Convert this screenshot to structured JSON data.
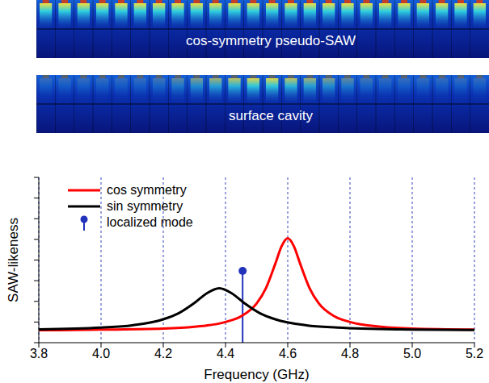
{
  "images": [
    {
      "label": "cos-symmetry pseudo-SAW"
    },
    {
      "label": "surface cavity"
    }
  ],
  "chart_data": {
    "type": "line",
    "xlabel": "Frequency (GHz)",
    "ylabel": "SAW-likeness",
    "xlim": [
      3.8,
      5.2
    ],
    "xticks": [
      3.8,
      {
        "value": 4,
        "label": "4.0"
      },
      4.2,
      4.4,
      4.6,
      4.8,
      {
        "value": 5,
        "label": "5.0"
      },
      5.2
    ],
    "ylim": [
      0,
      8
    ],
    "yticks": [
      0,
      1,
      2,
      3,
      4,
      5,
      6,
      7,
      8
    ],
    "tick_labels": "x",
    "grid": true,
    "legend": "upper left",
    "series": [
      {
        "name": "cos symmetry",
        "color": "#ff0000",
        "type": "line",
        "x": [
          3.8,
          4.0,
          4.2,
          4.3,
          4.4,
          4.45,
          4.5,
          4.53,
          4.56,
          4.58,
          4.6,
          4.62,
          4.64,
          4.67,
          4.7,
          4.75,
          4.8,
          4.9,
          5.0,
          5.2
        ],
        "values": [
          0.6,
          0.63,
          0.68,
          0.77,
          1.0,
          1.28,
          1.9,
          2.64,
          3.82,
          4.66,
          5.05,
          4.66,
          3.82,
          2.64,
          1.9,
          1.28,
          1.0,
          0.77,
          0.68,
          0.63
        ]
      },
      {
        "name": "sin symmetry",
        "color": "#000000",
        "type": "line",
        "x": [
          3.8,
          4.0,
          4.1,
          4.2,
          4.25,
          4.3,
          4.34,
          4.38,
          4.42,
          4.46,
          4.51,
          4.56,
          4.66,
          4.76,
          4.96,
          5.2
        ],
        "values": [
          0.64,
          0.73,
          0.84,
          1.13,
          1.43,
          1.92,
          2.39,
          2.63,
          2.39,
          1.92,
          1.43,
          1.13,
          0.84,
          0.73,
          0.64,
          0.61
        ]
      },
      {
        "name": "localized mode",
        "color": "#2233bb",
        "type": "stem",
        "marker": "circle",
        "x": [
          4.455
        ],
        "values": [
          3.47
        ]
      }
    ]
  }
}
